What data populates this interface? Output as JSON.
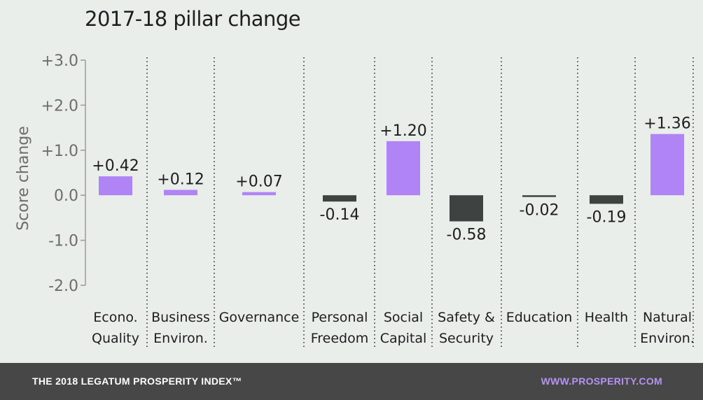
{
  "chart_data": {
    "type": "bar",
    "title": "2017-18 pillar change",
    "ylabel": "Score change",
    "ylim": [
      -2.0,
      3.0
    ],
    "yticks": [
      {
        "value": 3.0,
        "label": "+3.0"
      },
      {
        "value": 2.0,
        "label": "+2.0"
      },
      {
        "value": 1.0,
        "label": "+1.0"
      },
      {
        "value": 0.0,
        "label": "0.0"
      },
      {
        "value": -1.0,
        "label": "-1.0"
      },
      {
        "value": -2.0,
        "label": "-2.0"
      }
    ],
    "categories": [
      [
        "Econo.",
        "Quality"
      ],
      [
        "Business",
        "Environ."
      ],
      [
        "Governance"
      ],
      [
        "Personal",
        "Freedom"
      ],
      [
        "Social",
        "Capital"
      ],
      [
        "Safety &",
        "Security"
      ],
      [
        "Education"
      ],
      [
        "Health"
      ],
      [
        "Natural",
        "Environ."
      ]
    ],
    "values": [
      0.42,
      0.12,
      0.07,
      -0.14,
      1.2,
      -0.58,
      -0.02,
      -0.19,
      1.36
    ],
    "value_labels": [
      "+0.42",
      "+0.12",
      "+0.07",
      "-0.14",
      "+1.20",
      "-0.58",
      "-0.02",
      "-0.19",
      "+1.36"
    ],
    "colors": {
      "positive": "#b084f5",
      "negative": "#3e4342",
      "axis": "#9a9a9a",
      "text": "#1e1e1e"
    },
    "separator_style": "dotted",
    "grid": false
  },
  "footer": {
    "left": "THE 2018 LEGATUM PROSPERITY INDEX™",
    "right": "WWW.PROSPERITY.COM"
  }
}
